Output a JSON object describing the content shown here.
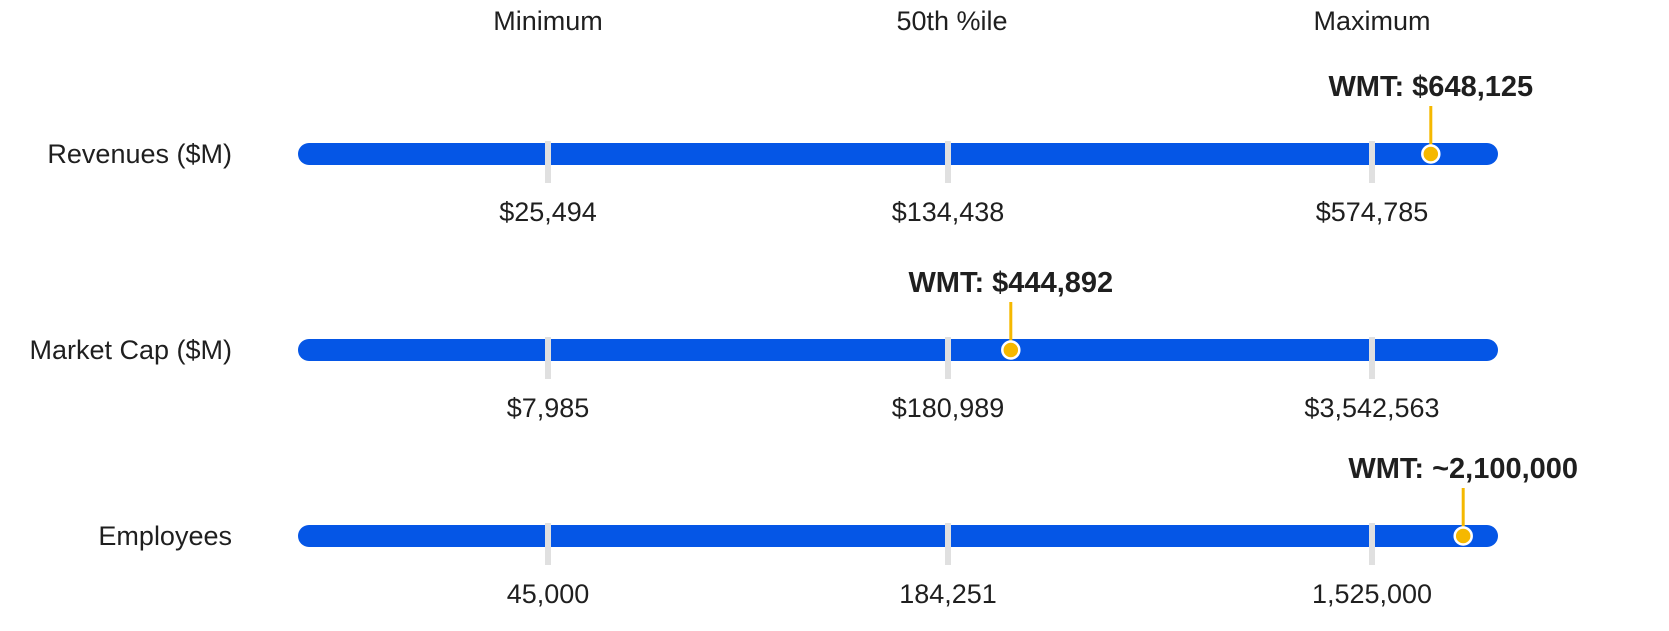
{
  "colors": {
    "bar": "#0556E6",
    "tick": "#e0e0e0",
    "marker": "#F5B800",
    "marker_stroke": "#ffffff",
    "text": "#1f1f1f"
  },
  "chart_data": {
    "type": "range-bar",
    "column_headers": [
      "Minimum",
      "50th %ile",
      "Maximum"
    ],
    "rows": [
      {
        "label": "Revenues ($M)",
        "ticks": [
          "$25,494",
          "$134,438",
          "$574,785"
        ],
        "marker_label": "WMT: $648,125",
        "marker_value": 648125,
        "marker_fraction": 0.944
      },
      {
        "label": "Market Cap ($M)",
        "ticks": [
          "$7,985",
          "$180,989",
          "$3,542,563"
        ],
        "marker_label": "WMT: $444,892",
        "marker_value": 444892,
        "marker_fraction": 0.594
      },
      {
        "label": "Employees",
        "ticks": [
          "45,000",
          "184,251",
          "1,525,000"
        ],
        "marker_label": "WMT: ~2,100,000",
        "marker_value": 2100000,
        "marker_fraction": 0.971
      }
    ]
  }
}
